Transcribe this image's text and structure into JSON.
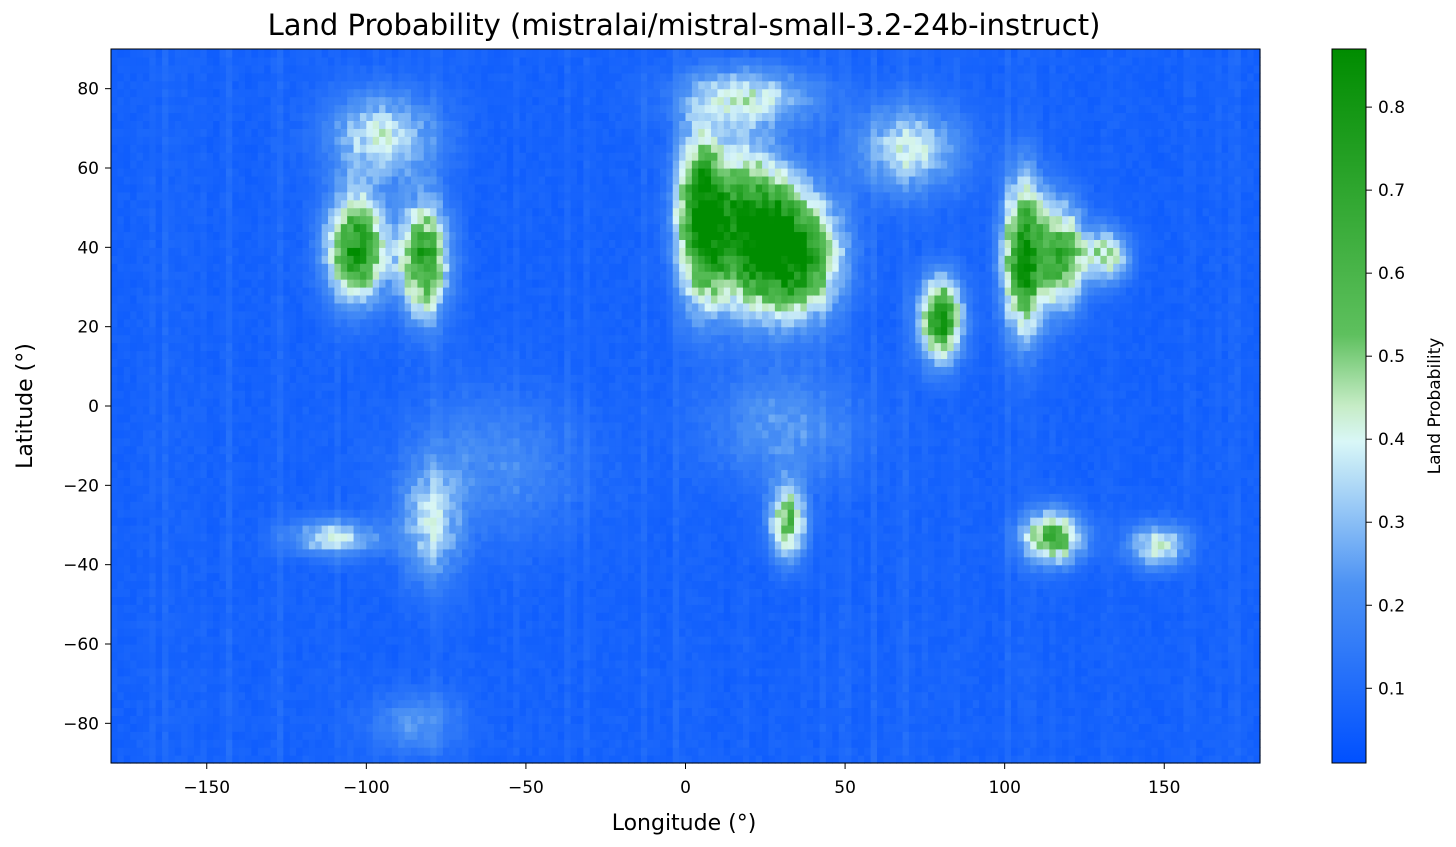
{
  "chart_data": {
    "type": "heatmap",
    "title": "Land Probability (mistralai/mistral-small-3.2-24b-instruct)",
    "xlabel": "Longitude (°)",
    "ylabel": "Latitude (°)",
    "xlim": [
      -180,
      180
    ],
    "ylim": [
      -90,
      90
    ],
    "x_ticks": [
      -150,
      -100,
      -50,
      0,
      50,
      100,
      150
    ],
    "x_tick_labels": [
      "−150",
      "−100",
      "−50",
      "0",
      "50",
      "100",
      "150"
    ],
    "y_ticks": [
      80,
      60,
      40,
      20,
      0,
      -20,
      -40,
      -60,
      -80
    ],
    "y_tick_labels": [
      "80",
      "60",
      "40",
      "20",
      "0",
      "−20",
      "−40",
      "−60",
      "−80"
    ],
    "grid_resolution_deg": 2,
    "colorbar": {
      "label": "Land Probability",
      "range": [
        0.01,
        0.87
      ],
      "ticks": [
        0.1,
        0.2,
        0.3,
        0.4,
        0.5,
        0.6,
        0.7,
        0.8
      ],
      "tick_labels": [
        "0.1",
        "0.2",
        "0.3",
        "0.4",
        "0.5",
        "0.6",
        "0.7",
        "0.8"
      ],
      "colormap": [
        {
          "value": 0.0,
          "color": "#0050ff"
        },
        {
          "value": 0.25,
          "color": "#4c92f4"
        },
        {
          "value": 0.45,
          "color": "#d9f7f7"
        },
        {
          "value": 0.5,
          "color": "#c6ecc6"
        },
        {
          "value": 0.6,
          "color": "#5ec05e"
        },
        {
          "value": 1.0,
          "color": "#008c00"
        }
      ]
    },
    "base_probability": 0.05,
    "regions": [
      {
        "lon": -103,
        "lat": 40,
        "rlon": 10,
        "rlat": 14,
        "peak": 0.75
      },
      {
        "lon": -82,
        "lat": 37,
        "rlon": 8,
        "rlat": 15,
        "peak": 0.72
      },
      {
        "lon": -95,
        "lat": 68,
        "rlon": 18,
        "rlat": 12,
        "peak": 0.35
      },
      {
        "lon": 5,
        "lat": 48,
        "rlon": 8,
        "rlat": 22,
        "peak": 0.8
      },
      {
        "lon": 20,
        "lat": 45,
        "rlon": 14,
        "rlat": 20,
        "peak": 0.82
      },
      {
        "lon": 35,
        "lat": 38,
        "rlon": 14,
        "rlat": 16,
        "peak": 0.78
      },
      {
        "lon": 20,
        "lat": 78,
        "rlon": 22,
        "rlat": 8,
        "peak": 0.35
      },
      {
        "lon": 70,
        "lat": 65,
        "rlon": 18,
        "rlat": 12,
        "peak": 0.33
      },
      {
        "lon": 80,
        "lat": 22,
        "rlon": 7,
        "rlat": 11,
        "peak": 0.76
      },
      {
        "lon": 106,
        "lat": 38,
        "rlon": 7,
        "rlat": 20,
        "peak": 0.78
      },
      {
        "lon": 118,
        "lat": 38,
        "rlon": 8,
        "rlat": 14,
        "peak": 0.6
      },
      {
        "lon": 132,
        "lat": 38,
        "rlon": 8,
        "rlat": 7,
        "peak": 0.42
      },
      {
        "lon": 32,
        "lat": -29,
        "rlon": 6,
        "rlat": 10,
        "peak": 0.55
      },
      {
        "lon": 115,
        "lat": -33,
        "rlon": 10,
        "rlat": 7,
        "peak": 0.62
      },
      {
        "lon": 148,
        "lat": -35,
        "rlon": 10,
        "rlat": 6,
        "peak": 0.38
      },
      {
        "lon": -110,
        "lat": -33,
        "rlon": 16,
        "rlat": 5,
        "peak": 0.32
      },
      {
        "lon": -80,
        "lat": -30,
        "rlon": 10,
        "rlat": 16,
        "peak": 0.28
      },
      {
        "lon": 30,
        "lat": -5,
        "rlon": 25,
        "rlat": 15,
        "peak": 0.18
      },
      {
        "lon": -60,
        "lat": -15,
        "rlon": 30,
        "rlat": 20,
        "peak": 0.14
      },
      {
        "lon": -85,
        "lat": -80,
        "rlon": 15,
        "rlat": 8,
        "peak": 0.18
      }
    ]
  }
}
